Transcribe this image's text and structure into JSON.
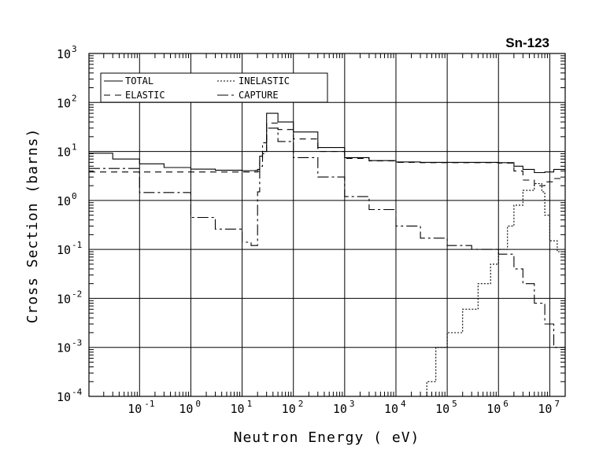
{
  "chart_data": {
    "type": "line",
    "title": "Sn-123",
    "xlabel": "Neutron Energy ( eV)",
    "ylabel": "Cross Section (barns)",
    "x_scale": "log",
    "y_scale": "log",
    "xlim": [
      0.0103,
      20000000
    ],
    "ylim": [
      0.0001,
      1000
    ],
    "grid": true,
    "legend_position": "top-left",
    "x_ticks": [
      {
        "base": "10",
        "exp": "-1",
        "value": 0.1
      },
      {
        "base": "10",
        "exp": "0",
        "value": 1
      },
      {
        "base": "10",
        "exp": "1",
        "value": 10
      },
      {
        "base": "10",
        "exp": "2",
        "value": 100
      },
      {
        "base": "10",
        "exp": "3",
        "value": 1000
      },
      {
        "base": "10",
        "exp": "4",
        "value": 10000
      },
      {
        "base": "10",
        "exp": "5",
        "value": 100000
      },
      {
        "base": "10",
        "exp": "6",
        "value": 1000000
      },
      {
        "base": "10",
        "exp": "7",
        "value": 10000000
      }
    ],
    "y_ticks": [
      {
        "base": "10",
        "exp": "3",
        "value": 1000
      },
      {
        "base": "10",
        "exp": "2",
        "value": 100
      },
      {
        "base": "10",
        "exp": "1",
        "value": 10
      },
      {
        "base": "10",
        "exp": "0",
        "value": 1
      },
      {
        "base": "10",
        "exp": "-1",
        "value": 0.1
      },
      {
        "base": "10",
        "exp": "-2",
        "value": 0.01
      },
      {
        "base": "10",
        "exp": "-3",
        "value": 0.001
      },
      {
        "base": "10",
        "exp": "-4",
        "value": 0.0001
      }
    ],
    "series": [
      {
        "name": "TOTAL",
        "dash": "solid",
        "x": [
          0.0103,
          0.03,
          0.1,
          0.3,
          1,
          3,
          10,
          18,
          20,
          22,
          25,
          30,
          50,
          100,
          300,
          1000,
          3000,
          10000,
          30000,
          100000,
          300000,
          1000000,
          2000000,
          3000000,
          5000000,
          8000000,
          12000000,
          20000000
        ],
        "y": [
          9.2,
          7,
          5.6,
          4.7,
          4.35,
          4.15,
          4.05,
          4.1,
          4.3,
          8,
          10,
          60,
          40,
          25,
          12,
          7.5,
          6.5,
          6.1,
          6,
          6,
          6,
          5.9,
          5,
          4.3,
          3.7,
          3.8,
          4.3,
          3.4
        ]
      },
      {
        "name": "ELASTIC",
        "dash": "8,6",
        "x": [
          0.0103,
          0.1,
          1,
          10,
          18,
          20,
          22,
          25,
          30,
          50,
          100,
          300,
          1000,
          3000,
          10000,
          30000,
          100000,
          300000,
          1000000,
          2000000,
          3000000,
          5000000,
          8000000,
          12000000,
          20000000
        ],
        "y": [
          3.8,
          3.8,
          3.8,
          3.8,
          3.8,
          3.9,
          7,
          9,
          38,
          28,
          18,
          10,
          7.2,
          6.4,
          6,
          5.9,
          5.9,
          5.9,
          5.8,
          4,
          2.6,
          2,
          2.4,
          2.8,
          2.4
        ]
      },
      {
        "name": "INELASTIC",
        "dash": "2,2",
        "x": [
          30000,
          40000,
          60000,
          100000,
          200000,
          400000,
          700000,
          1000000,
          1500000,
          2000000,
          3000000,
          5000000,
          6000000,
          7000000,
          8000000,
          10000000,
          14000000,
          20000000
        ],
        "y": [
          0.0001,
          0.0002,
          0.001,
          0.002,
          0.006,
          0.02,
          0.05,
          0.1,
          0.3,
          0.8,
          1.6,
          2.2,
          2.2,
          1.5,
          0.5,
          0.15,
          0.09,
          0.05
        ]
      },
      {
        "name": "CAPTURE",
        "dash": "14,4,3,4",
        "x": [
          0.0103,
          0.1,
          1,
          3,
          10,
          15,
          18,
          20,
          22,
          25,
          30,
          50,
          100,
          300,
          1000,
          3000,
          10000,
          30000,
          100000,
          300000,
          1000000,
          2000000,
          3000000,
          5000000,
          8000000,
          12000000,
          20000000
        ],
        "y": [
          4.5,
          1.45,
          0.45,
          0.26,
          0.14,
          0.12,
          0.12,
          1.5,
          5,
          15,
          30,
          16,
          7.5,
          3,
          1.2,
          0.65,
          0.3,
          0.17,
          0.12,
          0.1,
          0.08,
          0.04,
          0.02,
          0.008,
          0.003,
          0.001,
          0.0009
        ]
      }
    ]
  }
}
